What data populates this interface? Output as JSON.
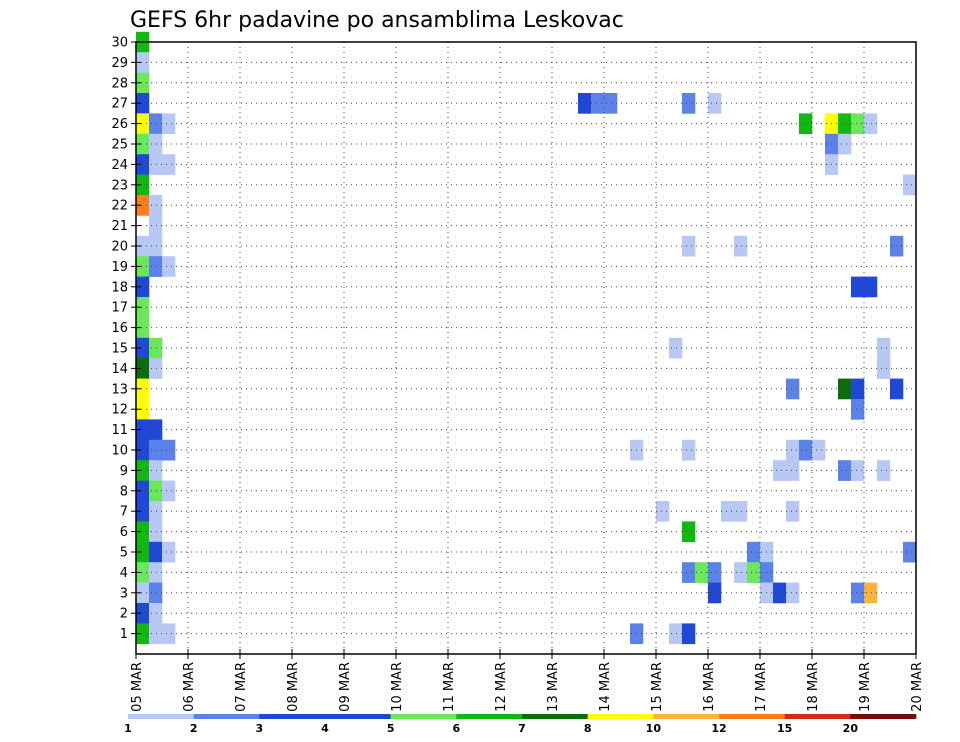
{
  "chart_data": {
    "type": "heatmap",
    "title": "GEFS 6hr padavine po ansamblima Leskovac",
    "xlabel": "",
    "ylabel": "",
    "x_tick_labels": [
      "05 MAR",
      "06 MAR",
      "07 MAR",
      "08 MAR",
      "09 MAR",
      "10 MAR",
      "11 MAR",
      "12 MAR",
      "13 MAR",
      "14 MAR",
      "15 MAR",
      "16 MAR",
      "17 MAR",
      "18 MAR",
      "19 MAR",
      "20 MAR"
    ],
    "x_range_days": [
      0,
      15
    ],
    "time_step_hours": 6,
    "y_range": [
      0,
      30
    ],
    "y_tick_labels": [
      "1",
      "2",
      "3",
      "4",
      "5",
      "6",
      "7",
      "8",
      "9",
      "10",
      "11",
      "12",
      "13",
      "14",
      "15",
      "16",
      "17",
      "18",
      "19",
      "20",
      "21",
      "22",
      "23",
      "24",
      "25",
      "26",
      "27",
      "28",
      "29",
      "30"
    ],
    "grid": "dotted",
    "legend": {
      "position": "bottom",
      "labels": [
        "1",
        "2",
        "3",
        "4",
        "5",
        "6",
        "7",
        "8",
        "10",
        "12",
        "15",
        "20"
      ],
      "colors": [
        "#b7c8f5",
        "#5a82e8",
        "#1f48d6",
        "#1f48d6",
        "#6ae85a",
        "#10b810",
        "#0a6e0a",
        "#ffff00",
        "#ffb23a",
        "#ff7d1a",
        "#d4281c",
        "#7a0a0a"
      ]
    },
    "series": [
      {
        "member": 30,
        "cells": [
          [
            0,
            6
          ]
        ]
      },
      {
        "member": 29,
        "cells": [
          [
            0,
            1
          ]
        ]
      },
      {
        "member": 28,
        "cells": [
          [
            0,
            5
          ]
        ]
      },
      {
        "member": 27,
        "cells": [
          [
            0,
            3
          ],
          [
            34,
            3
          ],
          [
            35,
            2
          ],
          [
            36,
            2
          ],
          [
            42,
            2
          ],
          [
            44,
            1
          ]
        ]
      },
      {
        "member": 26,
        "cells": [
          [
            0,
            8
          ],
          [
            1,
            2
          ],
          [
            2,
            1
          ],
          [
            51,
            6
          ],
          [
            53,
            8
          ],
          [
            54,
            6
          ],
          [
            55,
            5
          ],
          [
            56,
            1
          ]
        ]
      },
      {
        "member": 25,
        "cells": [
          [
            0,
            5
          ],
          [
            1,
            1
          ],
          [
            53,
            2
          ],
          [
            54,
            1
          ]
        ]
      },
      {
        "member": 24,
        "cells": [
          [
            0,
            3
          ],
          [
            1,
            1
          ],
          [
            2,
            1
          ],
          [
            53,
            1
          ]
        ]
      },
      {
        "member": 23,
        "cells": [
          [
            0,
            6
          ],
          [
            59,
            1
          ]
        ]
      },
      {
        "member": 22,
        "cells": [
          [
            0,
            10
          ],
          [
            1,
            1
          ]
        ]
      },
      {
        "member": 21,
        "cells": [
          [
            1,
            1
          ]
        ]
      },
      {
        "member": 20,
        "cells": [
          [
            0,
            1
          ],
          [
            1,
            1
          ],
          [
            42,
            1
          ],
          [
            46,
            1
          ],
          [
            58,
            2
          ]
        ]
      },
      {
        "member": 19,
        "cells": [
          [
            0,
            5
          ],
          [
            1,
            2
          ],
          [
            2,
            1
          ]
        ]
      },
      {
        "member": 18,
        "cells": [
          [
            0,
            3
          ],
          [
            55,
            3
          ],
          [
            56,
            3
          ]
        ]
      },
      {
        "member": 17,
        "cells": [
          [
            0,
            5
          ]
        ]
      },
      {
        "member": 16,
        "cells": [
          [
            0,
            5
          ]
        ]
      },
      {
        "member": 15,
        "cells": [
          [
            0,
            3
          ],
          [
            1,
            5
          ],
          [
            41,
            1
          ],
          [
            57,
            1
          ]
        ]
      },
      {
        "member": 14,
        "cells": [
          [
            0,
            7
          ],
          [
            1,
            1
          ],
          [
            57,
            1
          ]
        ]
      },
      {
        "member": 13,
        "cells": [
          [
            0,
            8
          ],
          [
            50,
            2
          ],
          [
            54,
            7
          ],
          [
            55,
            3
          ],
          [
            58,
            3
          ]
        ]
      },
      {
        "member": 12,
        "cells": [
          [
            0,
            8
          ],
          [
            55,
            2
          ]
        ]
      },
      {
        "member": 11,
        "cells": [
          [
            0,
            3
          ],
          [
            1,
            3
          ]
        ]
      },
      {
        "member": 10,
        "cells": [
          [
            0,
            3
          ],
          [
            1,
            2
          ],
          [
            2,
            2
          ],
          [
            38,
            1
          ],
          [
            42,
            1
          ],
          [
            50,
            1
          ],
          [
            51,
            2
          ],
          [
            52,
            1
          ]
        ]
      },
      {
        "member": 9,
        "cells": [
          [
            0,
            6
          ],
          [
            1,
            1
          ],
          [
            49,
            1
          ],
          [
            50,
            1
          ],
          [
            54,
            2
          ],
          [
            55,
            1
          ],
          [
            57,
            1
          ]
        ]
      },
      {
        "member": 8,
        "cells": [
          [
            0,
            3
          ],
          [
            1,
            5
          ],
          [
            2,
            1
          ]
        ]
      },
      {
        "member": 7,
        "cells": [
          [
            0,
            3
          ],
          [
            1,
            1
          ],
          [
            40,
            1
          ],
          [
            45,
            1
          ],
          [
            46,
            1
          ],
          [
            50,
            1
          ]
        ]
      },
      {
        "member": 6,
        "cells": [
          [
            0,
            6
          ],
          [
            1,
            1
          ],
          [
            42,
            6
          ]
        ]
      },
      {
        "member": 5,
        "cells": [
          [
            0,
            6
          ],
          [
            1,
            3
          ],
          [
            2,
            1
          ],
          [
            47,
            2
          ],
          [
            48,
            1
          ],
          [
            59,
            2
          ]
        ]
      },
      {
        "member": 4,
        "cells": [
          [
            0,
            5
          ],
          [
            1,
            1
          ],
          [
            42,
            2
          ],
          [
            43,
            5
          ],
          [
            44,
            2
          ],
          [
            46,
            1
          ],
          [
            47,
            5
          ],
          [
            48,
            2
          ]
        ]
      },
      {
        "member": 3,
        "cells": [
          [
            0,
            1
          ],
          [
            1,
            2
          ],
          [
            44,
            3
          ],
          [
            48,
            1
          ],
          [
            49,
            3
          ],
          [
            50,
            1
          ],
          [
            55,
            2
          ],
          [
            56,
            9
          ]
        ]
      },
      {
        "member": 2,
        "cells": [
          [
            0,
            3
          ],
          [
            1,
            1
          ]
        ]
      },
      {
        "member": 1,
        "cells": [
          [
            0,
            6
          ],
          [
            1,
            1
          ],
          [
            2,
            1
          ],
          [
            38,
            2
          ],
          [
            41,
            1
          ],
          [
            42,
            3
          ]
        ]
      }
    ]
  }
}
